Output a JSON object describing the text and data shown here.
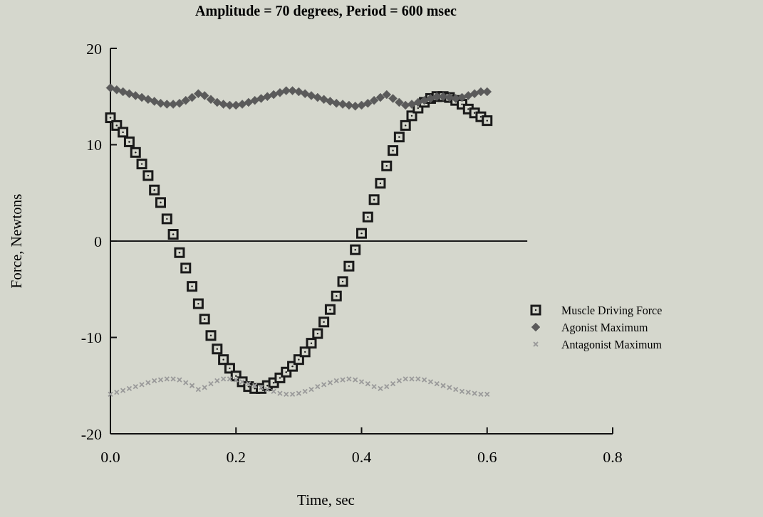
{
  "chart_data": {
    "type": "scatter",
    "title": "Amplitude = 70 degrees, Period = 600 msec",
    "xlabel": "Time, sec",
    "ylabel": "Force, Newtons",
    "x": [
      0,
      0.01,
      0.02,
      0.03,
      0.04,
      0.05,
      0.06,
      0.07,
      0.08,
      0.09,
      0.1,
      0.11,
      0.12,
      0.13,
      0.14,
      0.15,
      0.16,
      0.17,
      0.18,
      0.19,
      0.2,
      0.21,
      0.22,
      0.23,
      0.24,
      0.25,
      0.26,
      0.27,
      0.28,
      0.29,
      0.3,
      0.31,
      0.32,
      0.33,
      0.34,
      0.35,
      0.36,
      0.37,
      0.38,
      0.39,
      0.4,
      0.41,
      0.42,
      0.43,
      0.44,
      0.45,
      0.46,
      0.47,
      0.48,
      0.49,
      0.5,
      0.51,
      0.52,
      0.53,
      0.54,
      0.55,
      0.56,
      0.57,
      0.58,
      0.59,
      0.6
    ],
    "series": [
      {
        "name": "Muscle Driving Force",
        "color": "#1a1a1a",
        "marker": "square",
        "values": [
          12.8,
          12.0,
          11.3,
          10.3,
          9.2,
          8.0,
          6.8,
          5.3,
          4.0,
          2.3,
          0.7,
          -1.2,
          -2.8,
          -4.7,
          -6.5,
          -8.1,
          -9.8,
          -11.2,
          -12.3,
          -13.2,
          -14.0,
          -14.6,
          -15.1,
          -15.3,
          -15.3,
          -15.0,
          -14.7,
          -14.2,
          -13.6,
          -13.0,
          -12.3,
          -11.5,
          -10.6,
          -9.6,
          -8.4,
          -7.1,
          -5.7,
          -4.2,
          -2.6,
          -0.9,
          0.8,
          2.5,
          4.3,
          6.0,
          7.8,
          9.4,
          10.8,
          12.0,
          13.0,
          13.8,
          14.4,
          14.8,
          15.0,
          15.0,
          14.9,
          14.6,
          14.2,
          13.7,
          13.3,
          12.9,
          12.5
        ]
      },
      {
        "name": "Agonist Maximum",
        "color": "#5a5a5a",
        "marker": "diamond",
        "values": [
          15.9,
          15.7,
          15.5,
          15.3,
          15.1,
          14.9,
          14.7,
          14.5,
          14.3,
          14.2,
          14.2,
          14.3,
          14.6,
          14.9,
          15.3,
          15.1,
          14.7,
          14.4,
          14.2,
          14.1,
          14.1,
          14.2,
          14.4,
          14.6,
          14.8,
          15.0,
          15.2,
          15.4,
          15.6,
          15.6,
          15.5,
          15.3,
          15.1,
          14.9,
          14.7,
          14.5,
          14.3,
          14.2,
          14.1,
          14.0,
          14.1,
          14.3,
          14.6,
          14.9,
          15.2,
          14.8,
          14.4,
          14.1,
          14.2,
          14.4,
          14.6,
          14.8,
          15.0,
          15.0,
          14.9,
          14.8,
          14.9,
          15.1,
          15.3,
          15.5,
          15.5
        ]
      },
      {
        "name": "Antagonist Maximum",
        "color": "#9a9a9a",
        "marker": "cross",
        "values": [
          -15.9,
          -15.7,
          -15.5,
          -15.3,
          -15.1,
          -14.9,
          -14.7,
          -14.5,
          -14.4,
          -14.3,
          -14.3,
          -14.4,
          -14.7,
          -15.0,
          -15.4,
          -15.2,
          -14.8,
          -14.5,
          -14.3,
          -14.3,
          -14.4,
          -14.6,
          -14.8,
          -15.0,
          -15.2,
          -15.4,
          -15.6,
          -15.8,
          -15.9,
          -15.9,
          -15.8,
          -15.6,
          -15.4,
          -15.1,
          -14.9,
          -14.7,
          -14.5,
          -14.4,
          -14.3,
          -14.4,
          -14.6,
          -14.8,
          -15.1,
          -15.3,
          -15.1,
          -14.8,
          -14.5,
          -14.3,
          -14.3,
          -14.3,
          -14.4,
          -14.6,
          -14.8,
          -15.0,
          -15.2,
          -15.4,
          -15.6,
          -15.7,
          -15.8,
          -15.9,
          -15.9
        ]
      }
    ],
    "xlim": [
      0,
      0.8
    ],
    "xticks": [
      {
        "value": 0,
        "label": "0.0"
      },
      0.2,
      0.4,
      0.6,
      0.8
    ],
    "ylim": [
      -20,
      20
    ],
    "yticks": [
      -20,
      -10,
      0,
      10,
      20
    ],
    "ref_lines": [
      {
        "axis": "y",
        "value": 0,
        "color": "#1a1a1a"
      }
    ],
    "grid": false,
    "legend": "right"
  }
}
